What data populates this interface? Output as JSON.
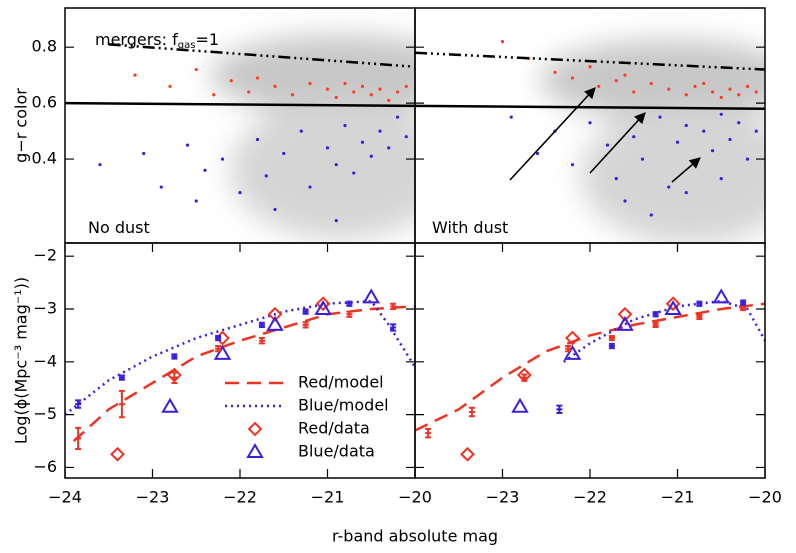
{
  "chart_data": [
    {
      "type": "scatter",
      "ylabel": "g−r color",
      "annotations": [
        {
          "text": "mergers: f",
          "sub": "gas",
          "rest": "=1"
        },
        {
          "text": "No dust"
        }
      ],
      "xlim": [
        -24,
        -20
      ],
      "ylim": [
        0.1,
        0.94
      ],
      "yticks": [
        0.8,
        0.6,
        0.4
      ],
      "series": [
        {
          "kind": "points",
          "color": "#ff3b1f",
          "x": [
            -23.2,
            -22.8,
            -22.5,
            -22.1,
            -21.9,
            -21.6,
            -21.4,
            -21.2,
            -21.0,
            -20.9,
            -20.7,
            -20.6,
            -20.5,
            -20.4,
            -20.3,
            -20.2,
            -20.1,
            -21.8,
            -22.3,
            -20.8
          ],
          "values": [
            0.7,
            0.66,
            0.72,
            0.68,
            0.64,
            0.66,
            0.63,
            0.67,
            0.65,
            0.62,
            0.64,
            0.66,
            0.63,
            0.65,
            0.61,
            0.64,
            0.66,
            0.69,
            0.63,
            0.67
          ]
        },
        {
          "kind": "points",
          "color": "#3a1ee0",
          "x": [
            -23.6,
            -23.1,
            -22.9,
            -22.6,
            -22.4,
            -22.2,
            -22.0,
            -21.8,
            -21.7,
            -21.5,
            -21.3,
            -21.2,
            -21.0,
            -20.9,
            -20.8,
            -20.7,
            -20.6,
            -20.5,
            -20.4,
            -20.3,
            -20.2,
            -20.1,
            -21.6,
            -22.5,
            -20.9
          ],
          "values": [
            0.38,
            0.42,
            0.3,
            0.45,
            0.36,
            0.4,
            0.28,
            0.47,
            0.34,
            0.42,
            0.5,
            0.3,
            0.44,
            0.38,
            0.52,
            0.35,
            0.46,
            0.41,
            0.5,
            0.44,
            0.55,
            0.48,
            0.22,
            0.25,
            0.18
          ]
        },
        {
          "kind": "line",
          "style": "solid",
          "color": "#000000",
          "x": [
            -24,
            -20
          ],
          "values": [
            0.6,
            0.59
          ]
        },
        {
          "kind": "line",
          "style": "dashdot",
          "color": "#000000",
          "x": [
            -23.5,
            -20
          ],
          "values": [
            0.81,
            0.73
          ]
        }
      ]
    },
    {
      "type": "scatter",
      "annotations": [
        {
          "text": "With dust"
        }
      ],
      "xlim": [
        -24,
        -20
      ],
      "ylim": [
        0.1,
        0.94
      ],
      "yticks": [
        0.8,
        0.6,
        0.4
      ],
      "series": [
        {
          "kind": "points",
          "color": "#ff3b1f",
          "x": [
            -23.0,
            -22.7,
            -22.4,
            -22.2,
            -21.9,
            -21.7,
            -21.5,
            -21.3,
            -21.1,
            -20.9,
            -20.8,
            -20.6,
            -20.5,
            -20.4,
            -20.3,
            -20.2,
            -20.1,
            -21.6,
            -22.0,
            -20.7
          ],
          "values": [
            0.82,
            0.76,
            0.71,
            0.69,
            0.66,
            0.68,
            0.64,
            0.67,
            0.65,
            0.63,
            0.66,
            0.64,
            0.62,
            0.65,
            0.63,
            0.66,
            0.64,
            0.7,
            0.73,
            0.67
          ]
        },
        {
          "kind": "points",
          "color": "#3a1ee0",
          "x": [
            -22.9,
            -22.6,
            -22.4,
            -22.2,
            -22.0,
            -21.8,
            -21.7,
            -21.5,
            -21.4,
            -21.2,
            -21.1,
            -21.0,
            -20.9,
            -20.8,
            -20.7,
            -20.6,
            -20.5,
            -20.4,
            -20.3,
            -20.2,
            -20.1,
            -21.6,
            -21.3,
            -20.9,
            -20.5
          ],
          "values": [
            0.55,
            0.42,
            0.5,
            0.38,
            0.53,
            0.45,
            0.33,
            0.48,
            0.4,
            0.55,
            0.3,
            0.46,
            0.52,
            0.38,
            0.5,
            0.43,
            0.56,
            0.47,
            0.53,
            0.4,
            0.5,
            0.25,
            0.2,
            0.28,
            0.33
          ]
        },
        {
          "kind": "line",
          "style": "solid",
          "color": "#000000",
          "x": [
            -24,
            -20
          ],
          "values": [
            0.59,
            0.58
          ]
        },
        {
          "kind": "line",
          "style": "dashdot",
          "color": "#000000",
          "x": [
            -24,
            -20
          ],
          "values": [
            0.78,
            0.72
          ]
        }
      ]
    },
    {
      "type": "line",
      "ylabel": "Log(ϕ(Mpc⁻³ mag⁻¹))",
      "xlabel": "r-band absolute mag",
      "xlim": [
        -24,
        -20
      ],
      "ylim": [
        -6.2,
        -1.75
      ],
      "xticks": [
        {
          "value": -24,
          "label": "−24"
        },
        {
          "value": -23,
          "label": "−23"
        },
        {
          "value": -22,
          "label": "−22"
        },
        {
          "value": -21,
          "label": "−21"
        },
        {
          "value": -20,
          "label": "−20"
        }
      ],
      "yticks": [
        {
          "value": -2,
          "label": "−2"
        },
        {
          "value": -3,
          "label": "−3"
        },
        {
          "value": -4,
          "label": "−4"
        },
        {
          "value": -5,
          "label": "−5"
        },
        {
          "value": -6,
          "label": "−6"
        }
      ],
      "series": [
        {
          "name": "Red/model",
          "kind": "line",
          "style": "dashed",
          "color": "#ee3322",
          "x": [
            -23.9,
            -23.5,
            -23,
            -22.5,
            -22,
            -21.5,
            -21,
            -20.5,
            -20
          ],
          "values": [
            -5.5,
            -4.9,
            -4.4,
            -3.9,
            -3.6,
            -3.35,
            -3.1,
            -3.0,
            -2.95
          ]
        },
        {
          "name": "Blue/model",
          "kind": "line",
          "style": "dotted",
          "color": "#3a1ee0",
          "x": [
            -24,
            -23.5,
            -23,
            -22.5,
            -22,
            -21.5,
            -21,
            -20.5,
            -20.3,
            -20
          ],
          "values": [
            -5.0,
            -4.35,
            -3.9,
            -3.55,
            -3.3,
            -3.05,
            -2.9,
            -2.85,
            -3.3,
            -4.1
          ]
        },
        {
          "name": "Red/data",
          "kind": "diamond",
          "color": "#ee3322",
          "x": [
            -23.4,
            -22.75,
            -22.2,
            -21.6,
            -21.05
          ],
          "values": [
            -5.75,
            -4.25,
            -3.55,
            -3.1,
            -2.9
          ]
        },
        {
          "name": "Blue/data",
          "kind": "triangle",
          "color": "#3a1ee0",
          "x": [
            -22.8,
            -22.2,
            -21.6,
            -21.05,
            -20.5
          ],
          "values": [
            -4.85,
            -3.85,
            -3.3,
            -3.0,
            -2.78
          ]
        },
        {
          "kind": "errorbar",
          "color": "#ee3322",
          "x": [
            -23.85,
            -23.35,
            -22.75,
            -22.25,
            -21.75,
            -21.25,
            -20.75,
            -20.25
          ],
          "values": [
            -5.45,
            -4.8,
            -4.3,
            -3.75,
            -3.6,
            -3.3,
            -3.1,
            -2.95
          ],
          "errors": [
            0.2,
            0.25,
            0.1,
            0.05,
            0.05,
            0.05,
            0.05,
            0.05
          ]
        },
        {
          "kind": "errorbar",
          "color": "#3a1ee0",
          "x": [
            -23.85,
            -23.35,
            -22.75,
            -22.25,
            -21.75,
            -21.25,
            -20.75,
            -20.25
          ],
          "values": [
            -4.8,
            -4.3,
            -3.9,
            -3.55,
            -3.3,
            -3.05,
            -2.9,
            -3.35
          ],
          "errors": [
            0.07,
            0.04,
            0.04,
            0.04,
            0.04,
            0.04,
            0.04,
            0.06
          ]
        }
      ]
    },
    {
      "type": "line",
      "xlim": [
        -24,
        -20
      ],
      "ylim": [
        -6.2,
        -1.75
      ],
      "xticks": [
        {
          "value": -23,
          "label": "−23"
        },
        {
          "value": -22,
          "label": "−22"
        },
        {
          "value": -21,
          "label": "−21"
        },
        {
          "value": -20,
          "label": "−20"
        }
      ],
      "yticks": [
        -2,
        -3,
        -4,
        -5,
        -6
      ],
      "series": [
        {
          "kind": "line",
          "style": "dashed",
          "color": "#ee3322",
          "x": [
            -24,
            -23.5,
            -23,
            -22.5,
            -22,
            -21.5,
            -21,
            -20.5,
            -20
          ],
          "values": [
            -5.3,
            -4.9,
            -4.3,
            -3.8,
            -3.5,
            -3.3,
            -3.15,
            -3.0,
            -2.9
          ]
        },
        {
          "kind": "line",
          "style": "dotted",
          "color": "#3a1ee0",
          "x": [
            -22.3,
            -22,
            -21.5,
            -21,
            -20.5,
            -20.2,
            -20
          ],
          "values": [
            -4.0,
            -3.65,
            -3.2,
            -2.95,
            -2.85,
            -3.0,
            -3.6
          ]
        },
        {
          "kind": "diamond",
          "color": "#ee3322",
          "x": [
            -23.4,
            -22.75,
            -22.2,
            -21.6,
            -21.05
          ],
          "values": [
            -5.75,
            -4.25,
            -3.55,
            -3.1,
            -2.9
          ]
        },
        {
          "kind": "triangle",
          "color": "#3a1ee0",
          "x": [
            -22.8,
            -22.2,
            -21.6,
            -21.05,
            -20.5
          ],
          "values": [
            -4.85,
            -3.85,
            -3.3,
            -3.0,
            -2.78
          ]
        },
        {
          "kind": "errorbar",
          "color": "#ee3322",
          "x": [
            -23.85,
            -23.35,
            -22.75,
            -22.25,
            -21.75,
            -21.25,
            -20.75,
            -20.25
          ],
          "values": [
            -5.35,
            -4.95,
            -4.3,
            -3.75,
            -3.55,
            -3.3,
            -3.15,
            -2.98
          ],
          "errors": [
            0.08,
            0.08,
            0.06,
            0.05,
            0.04,
            0.04,
            0.04,
            0.04
          ]
        },
        {
          "kind": "errorbar",
          "color": "#3a1ee0",
          "x": [
            -22.35,
            -21.75,
            -21.25,
            -20.75,
            -20.25
          ],
          "values": [
            -4.9,
            -3.7,
            -3.1,
            -2.9,
            -2.88
          ],
          "errors": [
            0.07,
            0.04,
            0.04,
            0.04,
            0.04
          ]
        }
      ]
    }
  ]
}
